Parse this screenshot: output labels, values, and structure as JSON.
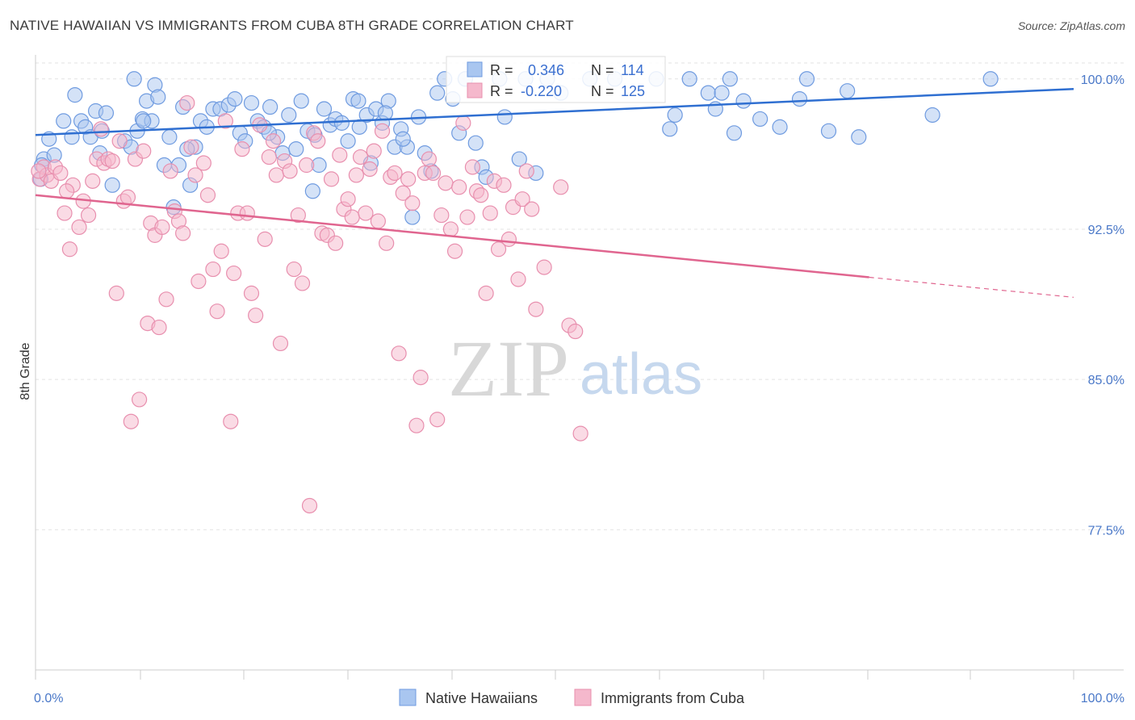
{
  "title": "NATIVE HAWAIIAN VS IMMIGRANTS FROM CUBA 8TH GRADE CORRELATION CHART",
  "source": "Source: ZipAtlas.com",
  "watermark": {
    "zip": "ZIP",
    "atlas": "atlas"
  },
  "colors": {
    "blue_fill": "#a9c6f0",
    "blue_stroke": "#6f9be0",
    "blue_line": "#2f6fd1",
    "pink_fill": "#f5b8cc",
    "pink_stroke": "#e88fae",
    "pink_line": "#e0658f",
    "axis_text": "#4a78c8",
    "grid": "#e3e3e3"
  },
  "legend": {
    "rows": [
      {
        "r_label": "R =",
        "r_value": "0.346",
        "n_label": "N =",
        "n_value": "114"
      },
      {
        "r_label": "R =",
        "r_value": "-0.220",
        "n_label": "N =",
        "n_value": "125"
      }
    ]
  },
  "bottom_legend": [
    "Native Hawaiians",
    "Immigrants from Cuba"
  ],
  "chart_data": {
    "type": "scatter",
    "title": "NATIVE HAWAIIAN VS IMMIGRANTS FROM CUBA 8TH GRADE CORRELATION CHART",
    "xlabel": "",
    "ylabel": "8th Grade",
    "xlim": [
      0,
      100
    ],
    "ylim": [
      70.5,
      101.2
    ],
    "y_ticks": [
      100.0,
      92.5,
      85.0,
      77.5
    ],
    "y_tick_labels": [
      "100.0%",
      "92.5%",
      "85.0%",
      "77.5%"
    ],
    "x_tick_labels": [
      "0.0%",
      "100.0%"
    ],
    "grid": true,
    "legend_position": "top-center",
    "series": [
      {
        "name": "Native Hawaiians",
        "r": 0.346,
        "n": 114,
        "trend": {
          "x": [
            0,
            100
          ],
          "y": [
            97.2,
            99.5
          ]
        },
        "points": [
          [
            0.8,
            96.0
          ],
          [
            0.6,
            95.7
          ],
          [
            1.3,
            97.0
          ],
          [
            1.8,
            96.2
          ],
          [
            2.7,
            97.9
          ],
          [
            3.5,
            97.1
          ],
          [
            3.8,
            99.2
          ],
          [
            4.4,
            97.9
          ],
          [
            4.8,
            97.6
          ],
          [
            5.3,
            97.1
          ],
          [
            5.8,
            98.4
          ],
          [
            6.4,
            97.4
          ],
          [
            6.8,
            98.3
          ],
          [
            7.4,
            94.7
          ],
          [
            8.6,
            96.9
          ],
          [
            9.2,
            96.6
          ],
          [
            9.5,
            100.0
          ],
          [
            9.8,
            97.4
          ],
          [
            10.3,
            98.0
          ],
          [
            10.7,
            98.9
          ],
          [
            11.2,
            97.9
          ],
          [
            11.5,
            99.7
          ],
          [
            11.8,
            99.1
          ],
          [
            12.4,
            95.7
          ],
          [
            12.9,
            97.1
          ],
          [
            13.3,
            93.6
          ],
          [
            13.8,
            95.7
          ],
          [
            14.2,
            98.6
          ],
          [
            14.9,
            94.7
          ],
          [
            15.4,
            96.6
          ],
          [
            15.9,
            97.9
          ],
          [
            16.5,
            97.6
          ],
          [
            17.1,
            98.5
          ],
          [
            17.8,
            98.5
          ],
          [
            18.6,
            98.7
          ],
          [
            19.2,
            99.0
          ],
          [
            19.7,
            97.3
          ],
          [
            20.2,
            96.9
          ],
          [
            20.8,
            98.8
          ],
          [
            21.4,
            97.9
          ],
          [
            22.0,
            97.6
          ],
          [
            22.6,
            98.6
          ],
          [
            23.3,
            97.1
          ],
          [
            23.8,
            96.3
          ],
          [
            24.4,
            98.2
          ],
          [
            25.1,
            96.5
          ],
          [
            25.6,
            98.9
          ],
          [
            26.2,
            97.4
          ],
          [
            26.7,
            94.4
          ],
          [
            27.3,
            95.7
          ],
          [
            27.8,
            98.5
          ],
          [
            28.4,
            97.7
          ],
          [
            28.9,
            98.0
          ],
          [
            29.5,
            97.8
          ],
          [
            30.1,
            96.9
          ],
          [
            30.6,
            99.0
          ],
          [
            31.2,
            97.6
          ],
          [
            31.9,
            98.2
          ],
          [
            32.3,
            95.8
          ],
          [
            32.8,
            98.5
          ],
          [
            33.4,
            97.8
          ],
          [
            34.0,
            98.9
          ],
          [
            34.6,
            96.6
          ],
          [
            35.2,
            97.5
          ],
          [
            35.8,
            96.6
          ],
          [
            36.3,
            93.1
          ],
          [
            36.9,
            98.1
          ],
          [
            37.5,
            96.3
          ],
          [
            38.1,
            95.4
          ],
          [
            38.7,
            99.3
          ],
          [
            39.4,
            100.0
          ],
          [
            40.2,
            99.0
          ],
          [
            40.8,
            97.3
          ],
          [
            41.4,
            100.0
          ],
          [
            42.4,
            96.8
          ],
          [
            43.0,
            95.6
          ],
          [
            43.4,
            95.1
          ],
          [
            44.7,
            100.0
          ],
          [
            45.2,
            98.1
          ],
          [
            46.6,
            96.0
          ],
          [
            47.2,
            100.0
          ],
          [
            48.2,
            95.3
          ],
          [
            49.3,
            100.0
          ],
          [
            50.6,
            99.3
          ],
          [
            53.4,
            100.0
          ],
          [
            55.8,
            100.0
          ],
          [
            59.8,
            100.0
          ],
          [
            61.1,
            97.5
          ],
          [
            61.6,
            98.2
          ],
          [
            63.0,
            100.0
          ],
          [
            64.8,
            99.3
          ],
          [
            65.5,
            98.5
          ],
          [
            66.1,
            99.3
          ],
          [
            66.9,
            100.0
          ],
          [
            67.3,
            97.3
          ],
          [
            68.2,
            98.9
          ],
          [
            69.8,
            98.0
          ],
          [
            71.7,
            97.6
          ],
          [
            73.6,
            99.0
          ],
          [
            74.3,
            100.0
          ],
          [
            76.4,
            97.4
          ],
          [
            78.2,
            99.4
          ],
          [
            79.3,
            97.1
          ],
          [
            86.4,
            98.2
          ],
          [
            92.0,
            100.0
          ],
          [
            0.5,
            95.0
          ],
          [
            6.2,
            96.3
          ],
          [
            10.4,
            97.9
          ],
          [
            14.6,
            96.5
          ],
          [
            22.5,
            97.3
          ],
          [
            26.9,
            97.2
          ],
          [
            31.1,
            98.9
          ],
          [
            33.7,
            98.3
          ],
          [
            35.4,
            97.0
          ]
        ]
      },
      {
        "name": "Immigrants from Cuba",
        "r": -0.22,
        "n": 125,
        "trend": {
          "x": [
            0,
            80.3
          ],
          "y": [
            94.2,
            90.1
          ]
        },
        "trend_dashed": {
          "x": [
            80.3,
            100
          ],
          "y": [
            90.1,
            89.1
          ]
        },
        "points": [
          [
            0.4,
            95.0
          ],
          [
            0.8,
            95.6
          ],
          [
            1.1,
            95.2
          ],
          [
            1.5,
            94.9
          ],
          [
            1.9,
            95.6
          ],
          [
            2.4,
            95.3
          ],
          [
            2.8,
            93.3
          ],
          [
            3.3,
            91.5
          ],
          [
            3.6,
            94.7
          ],
          [
            4.2,
            92.6
          ],
          [
            4.6,
            93.9
          ],
          [
            5.1,
            93.2
          ],
          [
            5.5,
            94.9
          ],
          [
            5.9,
            96.0
          ],
          [
            6.3,
            97.5
          ],
          [
            6.6,
            95.8
          ],
          [
            7.0,
            96.0
          ],
          [
            7.4,
            95.9
          ],
          [
            7.8,
            89.3
          ],
          [
            8.1,
            96.9
          ],
          [
            8.5,
            93.9
          ],
          [
            8.9,
            94.1
          ],
          [
            9.2,
            82.9
          ],
          [
            9.6,
            96.0
          ],
          [
            10.0,
            84.0
          ],
          [
            10.4,
            96.4
          ],
          [
            10.8,
            87.8
          ],
          [
            11.1,
            92.8
          ],
          [
            11.5,
            92.2
          ],
          [
            11.9,
            87.6
          ],
          [
            12.2,
            92.6
          ],
          [
            12.6,
            89.0
          ],
          [
            13.0,
            95.4
          ],
          [
            13.4,
            93.4
          ],
          [
            13.8,
            92.9
          ],
          [
            14.2,
            92.3
          ],
          [
            14.6,
            98.8
          ],
          [
            15.0,
            96.6
          ],
          [
            15.4,
            95.2
          ],
          [
            15.7,
            89.9
          ],
          [
            16.2,
            95.8
          ],
          [
            16.6,
            94.2
          ],
          [
            17.1,
            90.5
          ],
          [
            17.5,
            88.4
          ],
          [
            17.9,
            91.4
          ],
          [
            18.3,
            97.9
          ],
          [
            18.8,
            82.9
          ],
          [
            19.1,
            90.3
          ],
          [
            19.5,
            93.3
          ],
          [
            19.9,
            96.5
          ],
          [
            20.4,
            93.3
          ],
          [
            20.8,
            89.3
          ],
          [
            21.2,
            88.2
          ],
          [
            21.6,
            97.7
          ],
          [
            22.1,
            92.0
          ],
          [
            22.5,
            96.1
          ],
          [
            22.9,
            96.9
          ],
          [
            23.2,
            95.2
          ],
          [
            23.6,
            86.8
          ],
          [
            24.0,
            95.9
          ],
          [
            24.5,
            95.4
          ],
          [
            24.9,
            90.5
          ],
          [
            25.3,
            93.2
          ],
          [
            25.7,
            89.8
          ],
          [
            26.1,
            95.7
          ],
          [
            26.4,
            78.7
          ],
          [
            26.8,
            97.3
          ],
          [
            27.2,
            96.9
          ],
          [
            27.6,
            92.3
          ],
          [
            28.1,
            92.2
          ],
          [
            28.5,
            95.0
          ],
          [
            28.9,
            91.8
          ],
          [
            29.3,
            96.2
          ],
          [
            29.7,
            93.5
          ],
          [
            30.1,
            94.0
          ],
          [
            30.5,
            93.1
          ],
          [
            30.9,
            95.2
          ],
          [
            31.3,
            96.1
          ],
          [
            31.8,
            93.3
          ],
          [
            32.2,
            95.5
          ],
          [
            32.6,
            96.4
          ],
          [
            33.0,
            92.9
          ],
          [
            33.4,
            97.4
          ],
          [
            33.8,
            91.8
          ],
          [
            34.2,
            95.1
          ],
          [
            34.6,
            95.3
          ],
          [
            35.0,
            86.3
          ],
          [
            35.4,
            94.3
          ],
          [
            35.9,
            95.0
          ],
          [
            36.3,
            93.8
          ],
          [
            36.7,
            82.7
          ],
          [
            37.1,
            85.1
          ],
          [
            37.5,
            95.3
          ],
          [
            37.9,
            96.0
          ],
          [
            38.3,
            95.3
          ],
          [
            38.7,
            83.0
          ],
          [
            39.1,
            93.2
          ],
          [
            39.5,
            94.8
          ],
          [
            40.0,
            92.5
          ],
          [
            40.4,
            91.4
          ],
          [
            40.8,
            94.6
          ],
          [
            41.2,
            97.8
          ],
          [
            41.6,
            93.1
          ],
          [
            42.1,
            95.6
          ],
          [
            42.5,
            94.4
          ],
          [
            42.9,
            94.2
          ],
          [
            43.4,
            89.3
          ],
          [
            43.8,
            93.3
          ],
          [
            44.2,
            94.9
          ],
          [
            44.6,
            91.5
          ],
          [
            45.1,
            94.7
          ],
          [
            45.6,
            92.0
          ],
          [
            46.0,
            93.6
          ],
          [
            46.5,
            90.0
          ],
          [
            46.9,
            94.0
          ],
          [
            47.3,
            95.4
          ],
          [
            47.8,
            93.5
          ],
          [
            48.2,
            88.5
          ],
          [
            49.0,
            90.6
          ],
          [
            50.6,
            94.6
          ],
          [
            51.4,
            87.7
          ],
          [
            52.0,
            87.4
          ],
          [
            52.5,
            82.3
          ],
          [
            0.3,
            95.4
          ],
          [
            3.0,
            94.4
          ]
        ]
      }
    ]
  }
}
